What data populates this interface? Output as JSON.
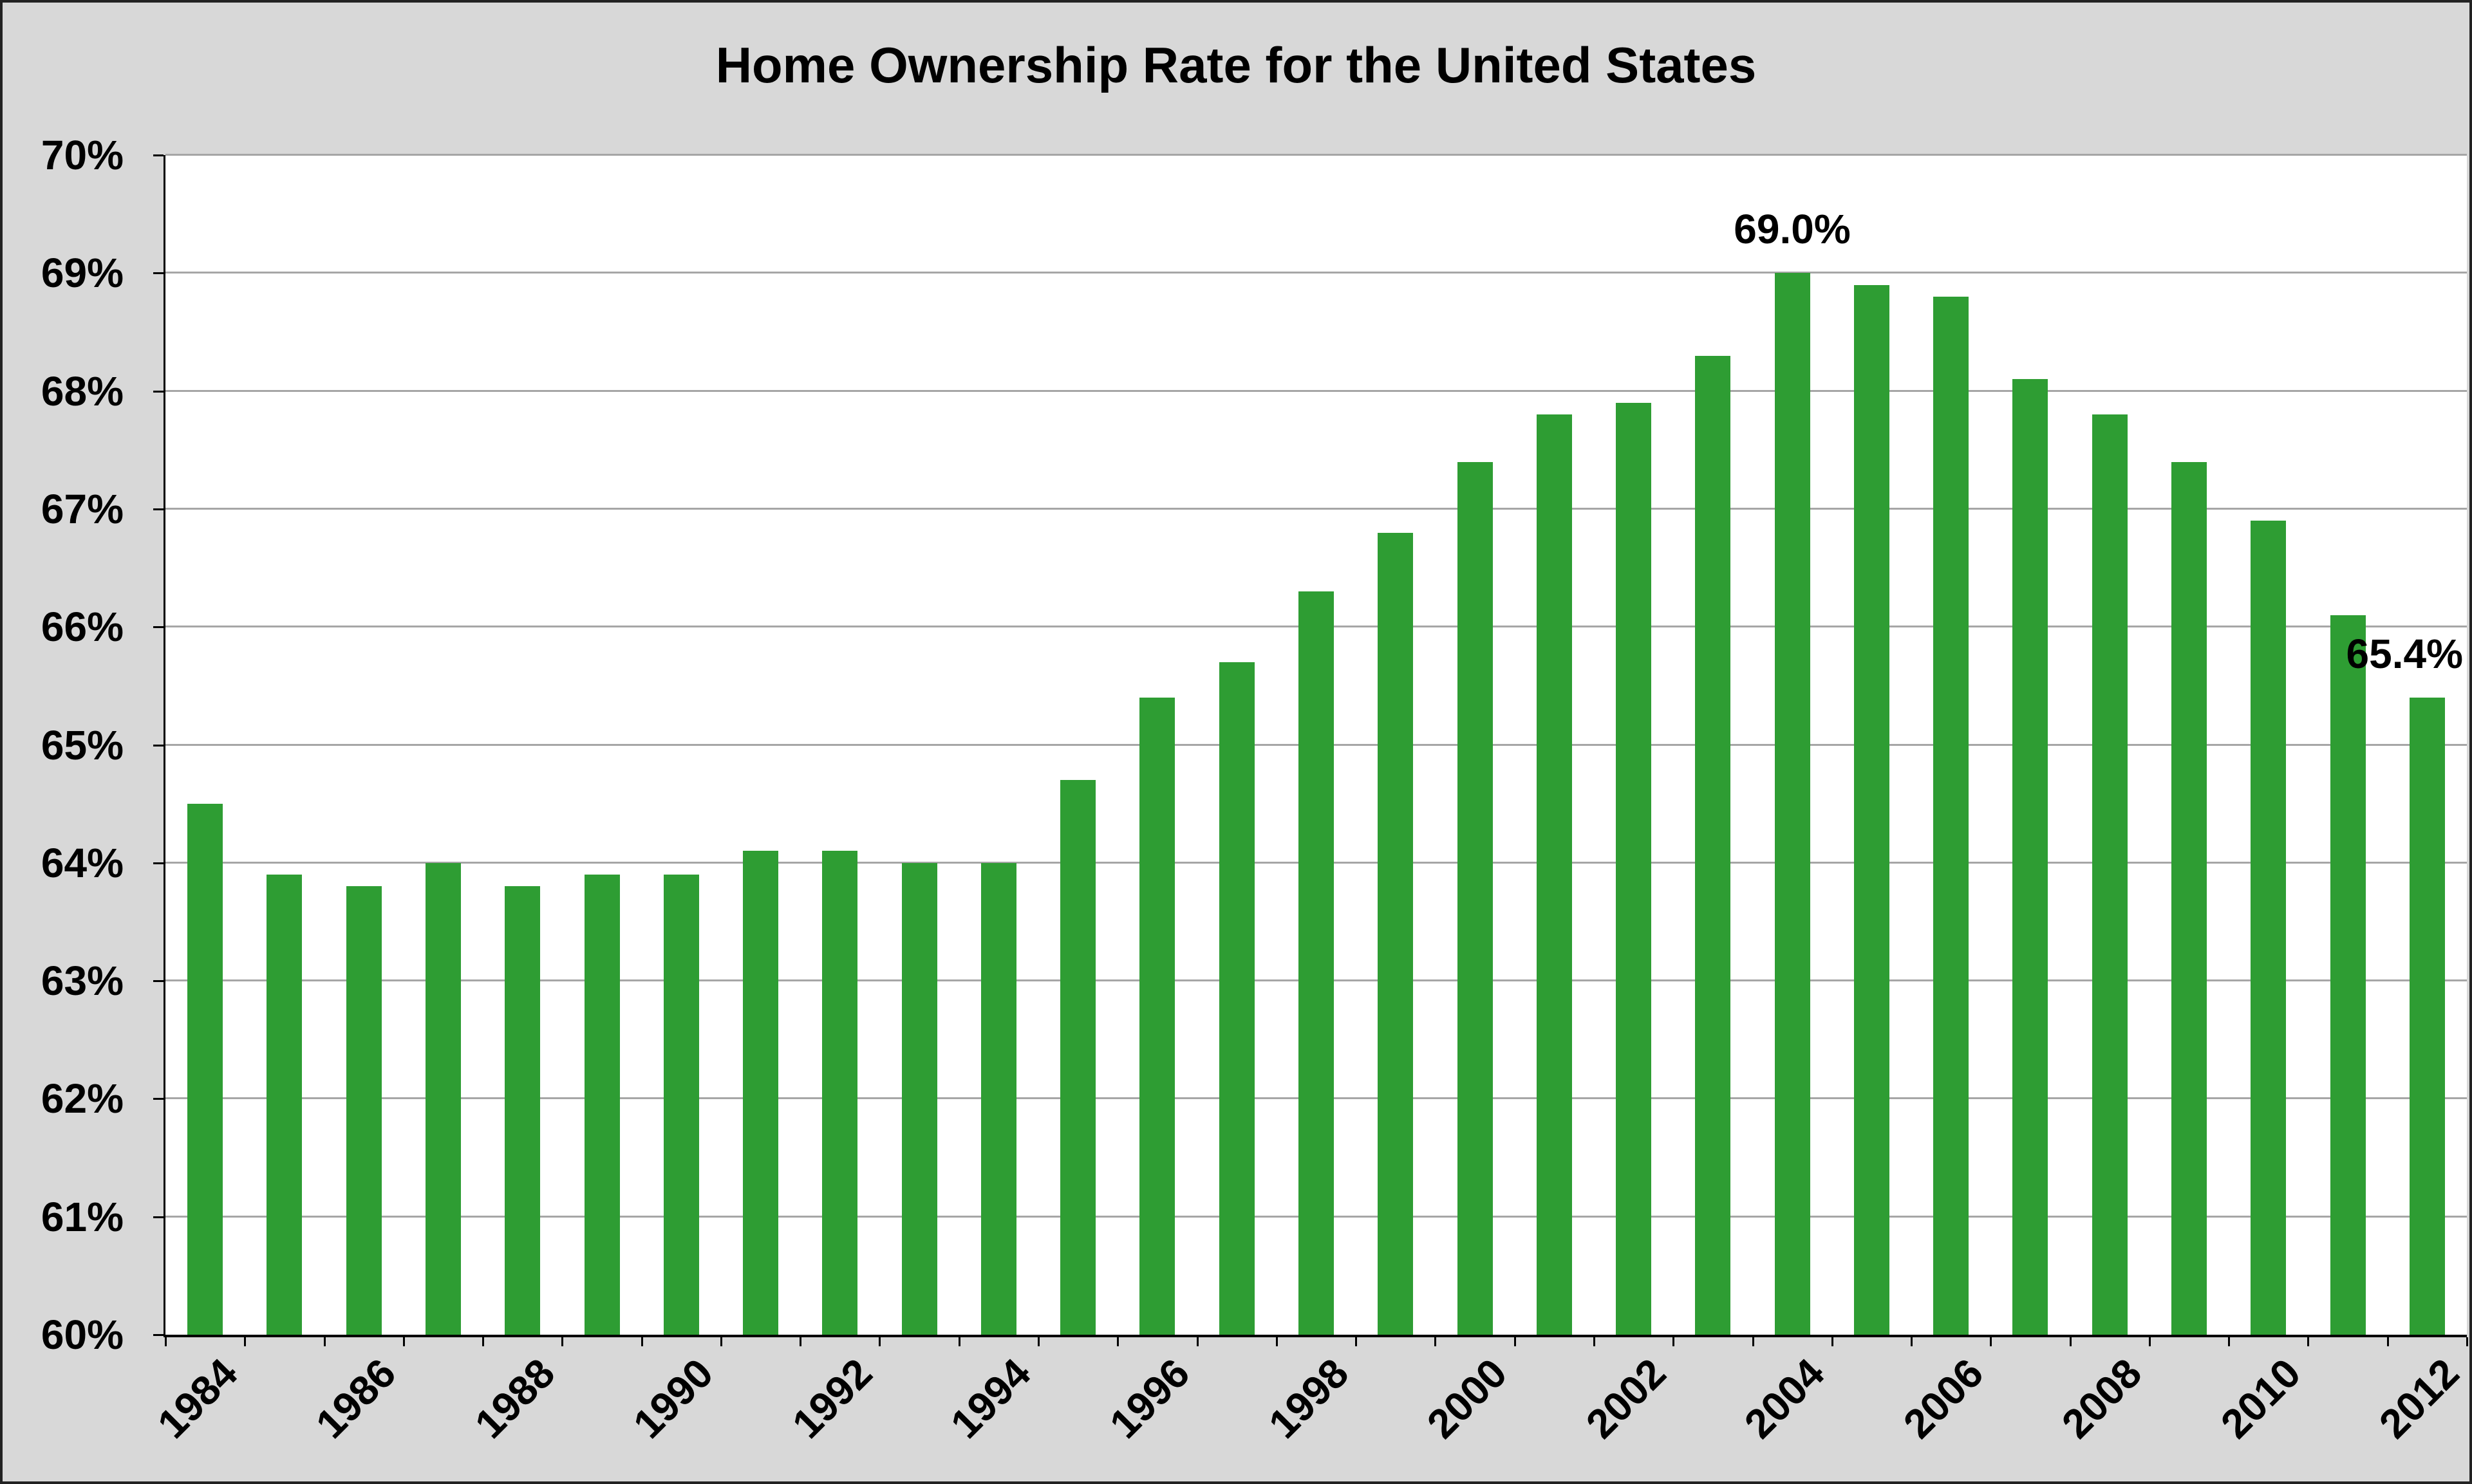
{
  "frame": {
    "background": "#d8d8d8",
    "plot_background": "#ffffff",
    "border_color": "#222222"
  },
  "chart_data": {
    "type": "bar",
    "title": "Home Ownership Rate for the United States",
    "xlabel": "",
    "ylabel": "",
    "categories": [
      1984,
      1985,
      1986,
      1987,
      1988,
      1989,
      1990,
      1991,
      1992,
      1993,
      1994,
      1995,
      1996,
      1997,
      1998,
      1999,
      2000,
      2001,
      2002,
      2003,
      2004,
      2005,
      2006,
      2007,
      2008,
      2009,
      2010,
      2011,
      2012
    ],
    "values": [
      64.5,
      63.9,
      63.8,
      64.0,
      63.8,
      63.9,
      63.9,
      64.1,
      64.1,
      64.0,
      64.0,
      64.7,
      65.4,
      65.7,
      66.3,
      66.8,
      67.4,
      67.8,
      67.9,
      68.3,
      69.0,
      68.9,
      68.8,
      68.1,
      67.8,
      67.4,
      66.9,
      66.1,
      65.4
    ],
    "ylim": [
      60,
      70
    ],
    "y_tick_step": 1,
    "y_tick_suffix": "%",
    "x_label_interval": 2,
    "grid": true,
    "legend": "none",
    "bar_color": "#2e9d33",
    "gridline_color": "#a6a6a6",
    "axis_color": "#000000",
    "annotations": [
      {
        "category": 2004,
        "text": "69.0%",
        "align": "center"
      },
      {
        "category": 2012,
        "text": "65.4%",
        "align": "right"
      }
    ]
  }
}
